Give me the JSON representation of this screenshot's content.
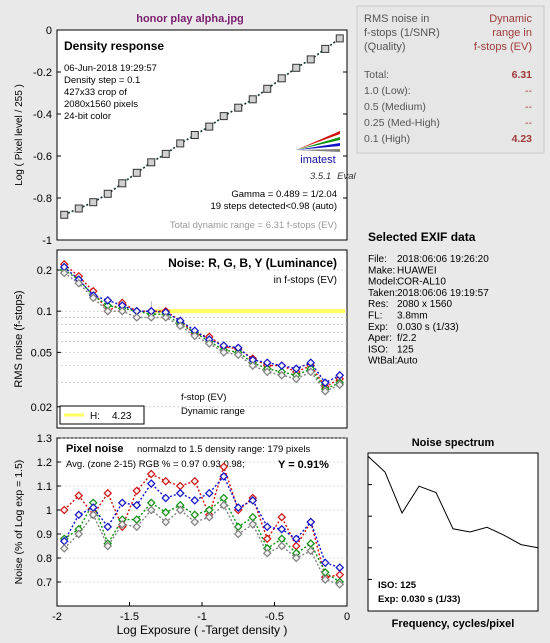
{
  "title": "honor play alpha.jpg",
  "colors": {
    "bg": "#e9e9e9",
    "plot_bg": "#ffffff",
    "red": "#d11010",
    "green": "#109010",
    "blue": "#1010c8",
    "gray": "#808080",
    "title_purple": "#7a1e6e",
    "sum_label": "#444444",
    "sum_value": "#a03a3a",
    "yellow": "#ffff60"
  },
  "summary": {
    "h_left": [
      "RMS noise in",
      "f-stops (1/SNR)",
      "(Quality)"
    ],
    "h_right": [
      "Dynamic",
      "range in",
      "f-stops (EV)"
    ],
    "rows": [
      {
        "label": "Total:",
        "value": "6.31"
      },
      {
        "label": "1.0  (Low):",
        "value": "--"
      },
      {
        "label": "0.5  (Medium)",
        "value": "--"
      },
      {
        "label": "0.25 (Med-High)",
        "value": "--"
      },
      {
        "label": "0.1  (High)",
        "value": "4.23"
      }
    ]
  },
  "exif": {
    "heading": "Selected EXIF data",
    "lines": [
      {
        "k": "File:",
        "v": "2018:06:06 19:26:20"
      },
      {
        "k": "Make:",
        "v": "HUAWEI"
      },
      {
        "k": "Model:",
        "v": "COR-AL10"
      },
      {
        "k": "Taken:",
        "v": "2018:06:06 19:19:57"
      },
      {
        "k": "Res:",
        "v": "2080 x 1560"
      },
      {
        "k": "FL:",
        "v": "3.8mm"
      },
      {
        "k": "Exp:",
        "v": "0.030 s  (1/33)"
      },
      {
        "k": "Aper:",
        "v": "f/2.2"
      },
      {
        "k": "ISO:",
        "v": "125"
      },
      {
        "k": "WtBal:",
        "v": "Auto"
      }
    ]
  },
  "chart_data": [
    {
      "type": "line",
      "title": "Density response",
      "ylabel": "Log ( Pixel level / 255 )",
      "xlim": [
        -2,
        0
      ],
      "ylim": [
        -1,
        0
      ],
      "yticks": [
        "0",
        "-0.2",
        "-0.4",
        "-0.6",
        "-0.8",
        "-1"
      ],
      "info": [
        "06-Jun-2018 19:29:57",
        "Density step = 0.1",
        "427x33 crop of",
        "2080x1560 pixels",
        "24-bit color"
      ],
      "logo": "imatest",
      "version": "3.5.1",
      "version_note": "Eval",
      "gamma_lines": [
        "Gamma = 0.489 = 1/2.04",
        "19 steps detected<0.98 (auto)"
      ],
      "dr_text": "Total dynamic range = 6.31 f-stops (EV)",
      "x": [
        -1.95,
        -1.85,
        -1.75,
        -1.65,
        -1.55,
        -1.45,
        -1.35,
        -1.25,
        -1.15,
        -1.05,
        -0.95,
        -0.85,
        -0.75,
        -0.65,
        -0.55,
        -0.45,
        -0.35,
        -0.25,
        -0.15,
        -0.05
      ],
      "values": [
        -0.88,
        -0.85,
        -0.82,
        -0.78,
        -0.73,
        -0.68,
        -0.63,
        -0.59,
        -0.54,
        -0.5,
        -0.46,
        -0.41,
        -0.37,
        -0.33,
        -0.28,
        -0.23,
        -0.18,
        -0.14,
        -0.09,
        -0.04
      ]
    },
    {
      "type": "line",
      "title": "Noise: R, G, B, Y (Luminance)",
      "subtitle": "in f-stops (EV)",
      "ylabel": "RMS noise (f-stops)",
      "log_y": true,
      "ylim": [
        0.014,
        0.28
      ],
      "yticks": [
        "0.2",
        "0.1",
        "0.05",
        "0.02"
      ],
      "legend_label": "H:",
      "legend_value": "4.23",
      "fstop_note": [
        "f-stop (EV)",
        "Dynamic range"
      ],
      "x": [
        -1.95,
        -1.85,
        -1.75,
        -1.65,
        -1.55,
        -1.45,
        -1.35,
        -1.25,
        -1.15,
        -1.05,
        -0.95,
        -0.85,
        -0.75,
        -0.65,
        -0.55,
        -0.45,
        -0.35,
        -0.25,
        -0.15,
        -0.05
      ],
      "series": [
        {
          "name": "R",
          "values": [
            0.22,
            0.18,
            0.14,
            0.1,
            0.115,
            0.1,
            0.1,
            0.1,
            0.085,
            0.068,
            0.065,
            0.055,
            0.053,
            0.045,
            0.04,
            0.04,
            0.036,
            0.04,
            0.028,
            0.032
          ]
        },
        {
          "name": "G",
          "values": [
            0.2,
            0.17,
            0.13,
            0.11,
            0.105,
            0.1,
            0.095,
            0.095,
            0.08,
            0.07,
            0.06,
            0.052,
            0.05,
            0.042,
            0.038,
            0.036,
            0.034,
            0.038,
            0.027,
            0.03
          ]
        },
        {
          "name": "B",
          "values": [
            0.21,
            0.17,
            0.13,
            0.12,
            0.11,
            0.1,
            0.1,
            0.098,
            0.085,
            0.072,
            0.062,
            0.056,
            0.054,
            0.044,
            0.042,
            0.04,
            0.038,
            0.042,
            0.03,
            0.034
          ]
        },
        {
          "name": "Y",
          "values": [
            0.19,
            0.16,
            0.125,
            0.1,
            0.1,
            0.09,
            0.09,
            0.09,
            0.078,
            0.066,
            0.058,
            0.05,
            0.048,
            0.04,
            0.036,
            0.034,
            0.032,
            0.036,
            0.026,
            0.029
          ]
        }
      ],
      "dr_band": {
        "x_start": -1.35,
        "x_end": 0,
        "y": 0.1
      }
    },
    {
      "type": "line",
      "title": "Pixel noise",
      "note": "normalzd to 1.5 density range: 179 pixels",
      "avg_text": "Avg. (zone 2-15) RGB % = 0.97  0.93  0.98;",
      "y_text": "Y = 0.91%",
      "xlabel": "Log Exposure  ( -Target density )",
      "ylabel": "Noise (% of Log exp = 1.5)",
      "xlim": [
        -2,
        0
      ],
      "ylim": [
        0.6,
        1.3
      ],
      "xticks": [
        "-2",
        "-1.5",
        "-1",
        "-0.5",
        "0"
      ],
      "yticks": [
        "1.3",
        "1.2",
        "1.1",
        "1",
        "0.9",
        "0.8",
        "0.7"
      ],
      "x": [
        -1.95,
        -1.85,
        -1.75,
        -1.65,
        -1.55,
        -1.45,
        -1.35,
        -1.25,
        -1.15,
        -1.05,
        -0.95,
        -0.85,
        -0.75,
        -0.65,
        -0.55,
        -0.45,
        -0.35,
        -0.25,
        -0.15,
        -0.05
      ],
      "series": [
        {
          "name": "R",
          "values": [
            1.0,
            1.06,
            0.98,
            1.07,
            0.93,
            1.08,
            1.15,
            1.12,
            1.1,
            1.12,
            0.98,
            1.18,
            1.0,
            1.05,
            0.88,
            0.97,
            0.85,
            0.95,
            0.72,
            0.73
          ]
        },
        {
          "name": "G",
          "values": [
            0.88,
            0.92,
            1.03,
            0.86,
            0.96,
            0.96,
            1.03,
            0.99,
            1.02,
            0.98,
            1.0,
            1.05,
            0.93,
            0.97,
            0.84,
            0.88,
            0.82,
            0.86,
            0.74,
            0.7
          ]
        },
        {
          "name": "B",
          "values": [
            0.87,
            0.98,
            1.01,
            0.93,
            1.03,
            1.02,
            1.11,
            1.05,
            1.07,
            1.04,
            1.07,
            1.14,
            1.01,
            1.04,
            0.93,
            0.92,
            0.88,
            0.95,
            0.78,
            0.76
          ]
        },
        {
          "name": "Y",
          "values": [
            0.84,
            0.9,
            0.98,
            0.85,
            0.94,
            0.93,
            1.0,
            0.95,
            1.0,
            0.95,
            0.97,
            1.02,
            0.9,
            0.94,
            0.82,
            0.85,
            0.8,
            0.83,
            0.71,
            0.69
          ]
        }
      ]
    },
    {
      "type": "line",
      "title": "Noise spectrum",
      "xlabel": "Frequency, cycles/pixel",
      "ylim": [
        0,
        1
      ],
      "yticks": [
        "1",
        "0.8",
        "0.6",
        "0.4",
        "0.2"
      ],
      "iso_text": "ISO:    125",
      "exp_text": "Exp:    0.030 s  (1/33)",
      "x": [
        0.0,
        0.05,
        0.1,
        0.15,
        0.2,
        0.25,
        0.3,
        0.35,
        0.4,
        0.45,
        0.5
      ],
      "values": [
        0.98,
        0.88,
        0.62,
        0.79,
        0.75,
        0.52,
        0.5,
        0.53,
        0.48,
        0.42,
        0.4
      ]
    }
  ]
}
